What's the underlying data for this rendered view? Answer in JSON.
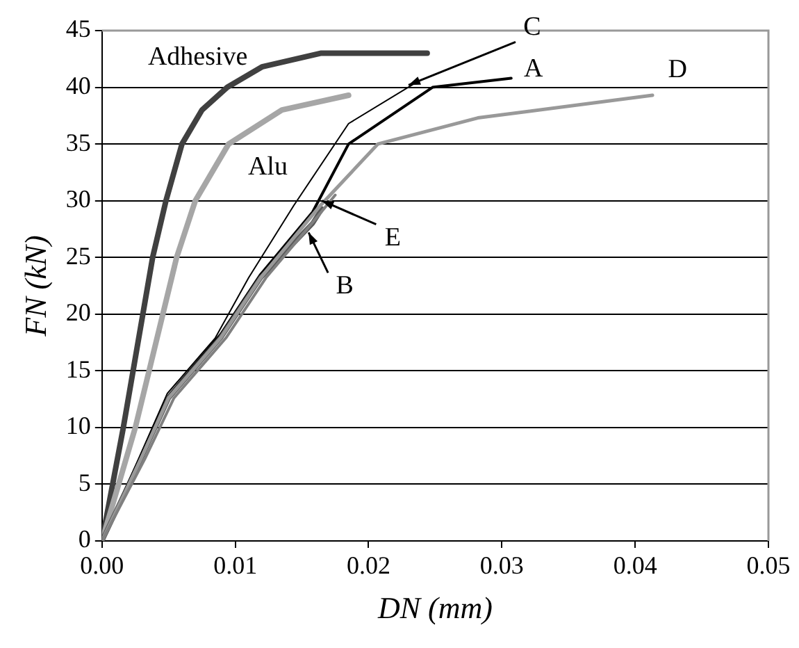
{
  "chart_data": {
    "type": "line",
    "xlabel": "DN (mm)",
    "ylabel": "FN (kN)",
    "xlim": [
      0,
      0.05
    ],
    "ylim": [
      0,
      45
    ],
    "xticks": [
      {
        "value": 0,
        "label": "0.00"
      },
      {
        "value": 0.01,
        "label": "0.01"
      },
      {
        "value": 0.02,
        "label": "0.02"
      },
      {
        "value": 0.03,
        "label": "0.03"
      },
      {
        "value": 0.04,
        "label": "0.04"
      },
      {
        "value": 0.05,
        "label": "0.05"
      }
    ],
    "yticks": [
      0,
      5,
      10,
      15,
      20,
      25,
      30,
      35,
      40,
      45
    ],
    "grid": "y",
    "marker": "none",
    "line_style": "solid",
    "series": [
      {
        "color": "#404040",
        "x": [
          0,
          0.0016,
          0.0038,
          0.0048,
          0.006,
          0.0075,
          0.0094,
          0.012,
          0.0164,
          0.0244
        ],
        "values": [
          0,
          10,
          25,
          30,
          35,
          38,
          40,
          41.8,
          43,
          43
        ]
      },
      {
        "color": "#a6a6a6",
        "x": [
          0,
          0.0025,
          0.0056,
          0.007,
          0.0095,
          0.0135,
          0.0185
        ],
        "values": [
          0,
          10,
          25,
          30,
          35,
          38,
          39.3
        ]
      },
      {
        "color": "#000000",
        "x": [
          0,
          0.0029,
          0.005,
          0.0089,
          0.0119,
          0.0158,
          0.0185,
          0.0248,
          0.0307
        ],
        "values": [
          0,
          7.4,
          12.8,
          18.2,
          23.5,
          29,
          35,
          40,
          40.8
        ]
      },
      {
        "color": "#595959",
        "x": [
          0,
          0.0029,
          0.005,
          0.0089,
          0.0119,
          0.0158,
          0.0165
        ],
        "values": [
          0,
          7.2,
          12.6,
          17.9,
          23.2,
          28,
          29.3
        ]
      },
      {
        "color": "#000000",
        "x": [
          0,
          0.0028,
          0.0049,
          0.0085,
          0.011,
          0.0144,
          0.0185,
          0.0234
        ],
        "values": [
          0,
          7.4,
          13,
          17.9,
          23.2,
          29.6,
          36.8,
          40.3
        ]
      },
      {
        "color": "#999999",
        "x": [
          0,
          0.0029,
          0.005,
          0.0089,
          0.0119,
          0.0164,
          0.0207,
          0.0282,
          0.0413
        ],
        "values": [
          0,
          7.2,
          12.6,
          17.9,
          23.2,
          29.6,
          35,
          37.3,
          39.3
        ]
      },
      {
        "color": "#808080",
        "x": [
          0,
          0.0032,
          0.0054,
          0.0093,
          0.0123,
          0.0161,
          0.0175
        ],
        "values": [
          0,
          7.2,
          12.6,
          17.9,
          23.2,
          28.5,
          30.5
        ]
      }
    ],
    "annotations": [
      {
        "text": "Adhesive",
        "x": 0.01,
        "y": 41
      },
      {
        "text": "Alu",
        "x": 0.0115,
        "y": 36
      },
      {
        "text": "C",
        "x": 0.023,
        "y": 40.2
      },
      {
        "text": "A",
        "x": 0.0307,
        "y": 40.8
      },
      {
        "text": "D",
        "x": 0.0413,
        "y": 39.3
      },
      {
        "text": "E",
        "x": 0.0165,
        "y": 30
      },
      {
        "text": "B",
        "x": 0.0155,
        "y": 27.2
      }
    ]
  }
}
